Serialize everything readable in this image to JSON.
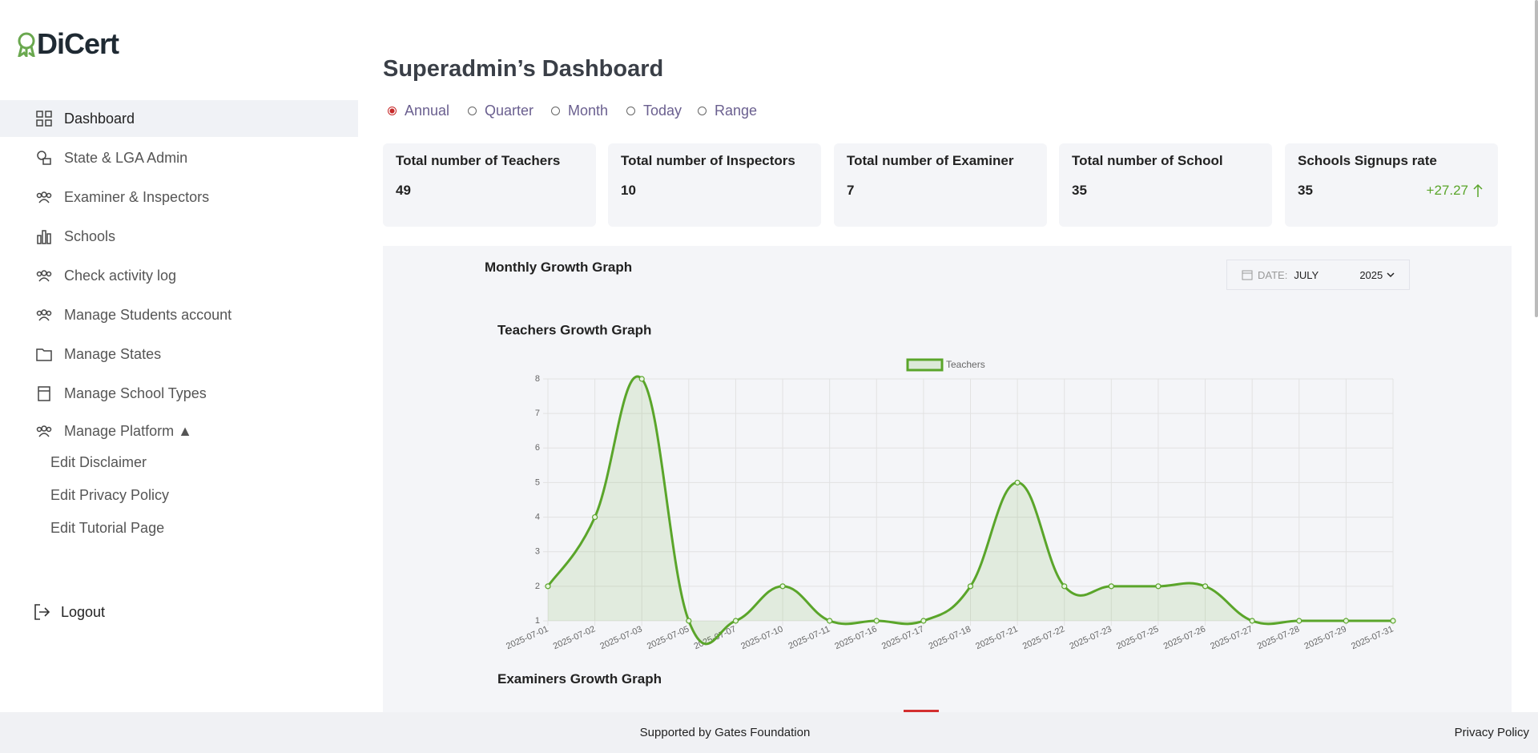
{
  "brand": "DiCert",
  "sidebar": {
    "items": [
      "Dashboard",
      "State & LGA Admin",
      "Examiner & Inspectors",
      "Schools",
      "Check activity log",
      "Manage Students account",
      "Manage States",
      "Manage School Types",
      "Manage Platform ▲"
    ],
    "active": 0,
    "subitems": [
      "Edit Disclaimer",
      "Edit Privacy Policy",
      "Edit Tutorial Page"
    ],
    "logout": "Logout"
  },
  "header": {
    "title": "Superadmin’s Dashboard",
    "periods": [
      "Annual",
      "Quarter",
      "Month",
      "Today",
      "Range"
    ],
    "selected": 0
  },
  "stats": [
    {
      "label": "Total number of Teachers",
      "value": "49"
    },
    {
      "label": "Total number of Inspectors",
      "value": "10"
    },
    {
      "label": "Total number of Examiner",
      "value": "7"
    },
    {
      "label": "Total number of School",
      "value": "35"
    },
    {
      "label": "Schools Signups rate",
      "value": "35",
      "change": "+27.27"
    }
  ],
  "panel": {
    "title": "Monthly Growth Graph",
    "date_label": "DATE:",
    "month": "JULY",
    "year": "2025",
    "next_chart_title": "Examiners Growth Graph"
  },
  "chart_data": {
    "type": "line",
    "title": "Teachers Growth Graph",
    "categories": [
      "2025-07-01",
      "2025-07-02",
      "2025-07-03",
      "2025-07-05",
      "2025-07-07",
      "2025-07-10",
      "2025-07-11",
      "2025-07-16",
      "2025-07-17",
      "2025-07-18",
      "2025-07-21",
      "2025-07-22",
      "2025-07-23",
      "2025-07-25",
      "2025-07-26",
      "2025-07-27",
      "2025-07-28",
      "2025-07-29",
      "2025-07-31"
    ],
    "series": [
      {
        "name": "Teachers",
        "color": "#5aa52a",
        "values": [
          2,
          4,
          8,
          1,
          1,
          2,
          1,
          1,
          1,
          2,
          5,
          2,
          2,
          2,
          2,
          1,
          1,
          1,
          1
        ]
      }
    ],
    "ylim": [
      1,
      8
    ],
    "yticks": [
      1,
      2,
      3,
      4,
      5,
      6,
      7,
      8
    ],
    "grid": true,
    "legend": "top"
  },
  "footer": {
    "credit": "Supported by Gates Foundation",
    "link": "Privacy Policy"
  }
}
